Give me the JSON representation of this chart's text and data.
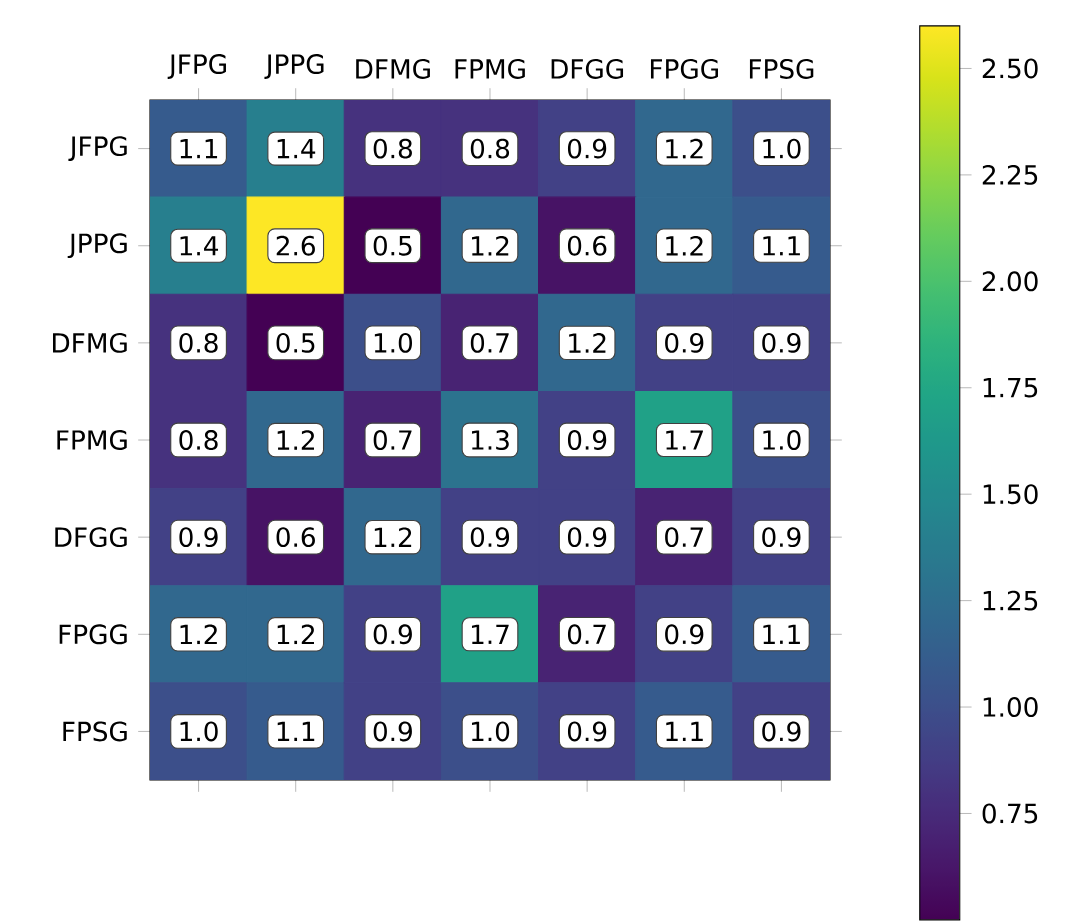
{
  "chart_data": {
    "type": "heatmap",
    "categories": [
      "JFPG",
      "JPPG",
      "DFMG",
      "FPMG",
      "DFGG",
      "FPGG",
      "FPSG"
    ],
    "y_categories": [
      "JFPG",
      "JPPG",
      "DFMG",
      "FPMG",
      "DFGG",
      "FPGG",
      "FPSG"
    ],
    "cells": [
      [
        1.1,
        1.4,
        0.8,
        0.8,
        0.9,
        1.2,
        1.0
      ],
      [
        1.4,
        2.6,
        0.5,
        1.2,
        0.6,
        1.2,
        1.1
      ],
      [
        0.8,
        0.5,
        1.0,
        0.7,
        1.2,
        0.9,
        0.9
      ],
      [
        0.8,
        1.2,
        0.7,
        1.3,
        0.9,
        1.7,
        1.0
      ],
      [
        0.9,
        0.6,
        1.2,
        0.9,
        0.9,
        0.7,
        0.9
      ],
      [
        1.2,
        1.2,
        0.9,
        1.7,
        0.7,
        0.9,
        1.1
      ],
      [
        1.0,
        1.1,
        0.9,
        1.0,
        0.9,
        1.1,
        0.9
      ]
    ],
    "clim": [
      0.5,
      2.6
    ],
    "cticks": [
      {
        "value": 0.75,
        "label": "0.75"
      },
      {
        "value": 1.0,
        "label": "1.00"
      },
      {
        "value": 1.25,
        "label": "1.25"
      },
      {
        "value": 1.5,
        "label": "1.50"
      },
      {
        "value": 1.75,
        "label": "1.75"
      },
      {
        "value": 2.0,
        "label": "2.00"
      },
      {
        "value": 2.25,
        "label": "2.25"
      },
      {
        "value": 2.5,
        "label": "2.50"
      }
    ],
    "cell_labels": [
      [
        "1.1",
        "1.4",
        "0.8",
        "0.8",
        "0.9",
        "1.2",
        "1.0"
      ],
      [
        "1.4",
        "2.6",
        "0.5",
        "1.2",
        "0.6",
        "1.2",
        "1.1"
      ],
      [
        "0.8",
        "0.5",
        "1.0",
        "0.7",
        "1.2",
        "0.9",
        "0.9"
      ],
      [
        "0.8",
        "1.2",
        "0.7",
        "1.3",
        "0.9",
        "1.7",
        "1.0"
      ],
      [
        "0.9",
        "0.6",
        "1.2",
        "0.9",
        "0.9",
        "0.7",
        "0.9"
      ],
      [
        "1.2",
        "1.2",
        "0.9",
        "1.7",
        "0.7",
        "0.9",
        "1.1"
      ],
      [
        "1.0",
        "1.1",
        "0.9",
        "1.0",
        "0.9",
        "1.1",
        "0.9"
      ]
    ]
  }
}
